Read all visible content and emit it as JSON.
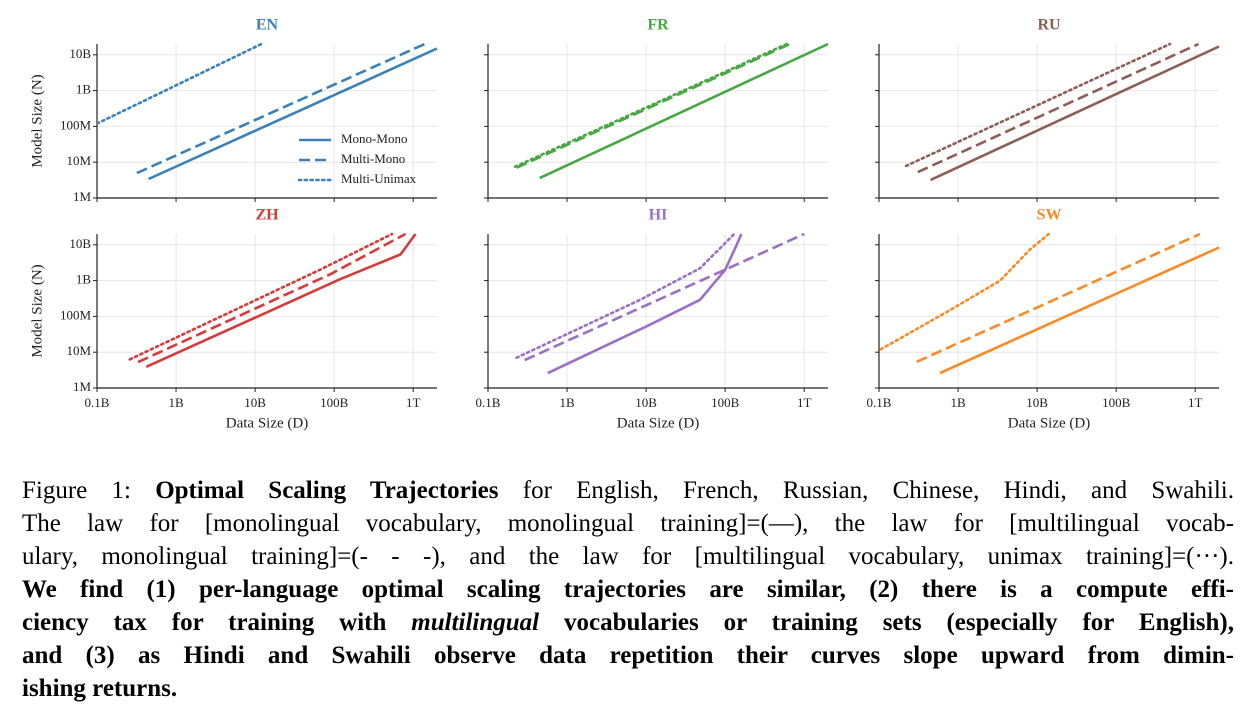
{
  "chart_data": [
    {
      "type": "line",
      "title": "EN",
      "ylabel": "Model Size (N)",
      "color": "#3a80ba",
      "log": true,
      "grid": true,
      "legend": "lower right",
      "xlim": [
        100000000,
        2000000000000
      ],
      "ylim": [
        1000000,
        20000000000
      ],
      "yticks": [
        {
          "value": 1000000,
          "label": "1M"
        },
        {
          "value": 10000000,
          "label": "10M"
        },
        {
          "value": 100000000,
          "label": "100M"
        },
        {
          "value": 1000000000,
          "label": "1B"
        },
        {
          "value": 10000000000,
          "label": "10B"
        }
      ],
      "series": [
        {
          "name": "Mono-Mono",
          "linestyle": "solid",
          "x": [
            450000000,
            2000000000000
          ],
          "values": [
            3400000,
            15000000000
          ]
        },
        {
          "name": "Multi-Mono",
          "linestyle": "dashed",
          "x": [
            320000000,
            1400000000000
          ],
          "values": [
            5000000,
            20000000000
          ]
        },
        {
          "name": "Multi-Unimax",
          "linestyle": "dotted",
          "x": [
            100000000,
            12000000000
          ],
          "values": [
            120000000,
            20000000000
          ]
        }
      ]
    },
    {
      "type": "line",
      "title": "FR",
      "color": "#47a843",
      "log": true,
      "grid": true,
      "xlim": [
        100000000,
        2000000000000
      ],
      "ylim": [
        1000000,
        20000000000
      ],
      "series": [
        {
          "linestyle": "solid",
          "x": [
            450000000,
            2000000000000
          ],
          "values": [
            3600000,
            20000000000
          ]
        },
        {
          "linestyle": "dashed",
          "x": [
            230000000,
            660000000000
          ],
          "values": [
            7000000,
            20000000000
          ]
        },
        {
          "linestyle": "dotted",
          "x": [
            220000000,
            600000000000
          ],
          "values": [
            7500000,
            20000000000
          ]
        }
      ]
    },
    {
      "type": "line",
      "title": "RU",
      "color": "#8c5e55",
      "log": true,
      "grid": true,
      "xlim": [
        100000000,
        2000000000000
      ],
      "ylim": [
        1000000,
        20000000000
      ],
      "series": [
        {
          "linestyle": "solid",
          "x": [
            450000000,
            2000000000000
          ],
          "values": [
            3200000,
            17000000000
          ]
        },
        {
          "linestyle": "dashed",
          "x": [
            310000000,
            1100000000000
          ],
          "values": [
            5300000,
            20000000000
          ]
        },
        {
          "linestyle": "dotted",
          "x": [
            220000000,
            480000000000
          ],
          "values": [
            7900000,
            20000000000
          ]
        }
      ]
    },
    {
      "type": "line",
      "title": "ZH",
      "ylabel": "Model Size (N)",
      "xlabel": "Data Size (D)",
      "color": "#d63a3a",
      "log": true,
      "grid": true,
      "xlim": [
        100000000,
        2000000000000
      ],
      "ylim": [
        1000000,
        20000000000
      ],
      "xticks": [
        {
          "value": 100000000,
          "label": "0.1B"
        },
        {
          "value": 1000000000,
          "label": "1B"
        },
        {
          "value": 10000000000,
          "label": "10B"
        },
        {
          "value": 100000000000,
          "label": "100B"
        },
        {
          "value": 1000000000000,
          "label": "1T"
        }
      ],
      "yticks": [
        {
          "value": 1000000,
          "label": "1M"
        },
        {
          "value": 10000000,
          "label": "10M"
        },
        {
          "value": 100000000,
          "label": "100M"
        },
        {
          "value": 1000000000,
          "label": "1B"
        },
        {
          "value": 10000000000,
          "label": "10B"
        }
      ],
      "series": [
        {
          "linestyle": "solid",
          "x": [
            420000000,
            120000000000,
            690000000000,
            1070000000000
          ],
          "values": [
            3900000,
            1100000000,
            5400000000,
            20000000000
          ]
        },
        {
          "linestyle": "dashed",
          "x": [
            330000000,
            89000000000,
            800000000000
          ],
          "values": [
            5300000,
            1500000000,
            20000000000
          ]
        },
        {
          "linestyle": "dotted",
          "x": [
            260000000,
            66000000000,
            540000000000
          ],
          "values": [
            6300000,
            2000000000,
            20000000000
          ]
        }
      ]
    },
    {
      "type": "line",
      "title": "HI",
      "xlabel": "Data Size (D)",
      "color": "#9a6fc4",
      "log": true,
      "grid": true,
      "xlim": [
        100000000,
        2000000000000
      ],
      "ylim": [
        1000000,
        20000000000
      ],
      "xticks": [
        {
          "value": 100000000,
          "label": "0.1B"
        },
        {
          "value": 1000000000,
          "label": "1B"
        },
        {
          "value": 10000000000,
          "label": "10B"
        },
        {
          "value": 100000000000,
          "label": "100B"
        },
        {
          "value": 1000000000000,
          "label": "1T"
        }
      ],
      "series": [
        {
          "linestyle": "solid",
          "x": [
            570000000,
            9800000000,
            48000000000,
            100000000000,
            140000000000,
            160000000000
          ],
          "values": [
            2600000,
            51000000,
            290000000,
            2000000000,
            10000000000,
            20000000000
          ]
        },
        {
          "linestyle": "dashed",
          "x": [
            290000000,
            1000000000000
          ],
          "values": [
            6000000,
            20000000000
          ]
        },
        {
          "linestyle": "dotted",
          "x": [
            230000000,
            8400000000,
            48000000000,
            130000000000
          ],
          "values": [
            7000000,
            290000000,
            2200000000,
            20000000000
          ]
        }
      ]
    },
    {
      "type": "line",
      "title": "SW",
      "xlabel": "Data Size (D)",
      "color": "#f98a26",
      "log": true,
      "grid": true,
      "xlim": [
        100000000,
        2000000000000
      ],
      "ylim": [
        1000000,
        20000000000
      ],
      "xticks": [
        {
          "value": 100000000,
          "label": "0.1B"
        },
        {
          "value": 1000000000,
          "label": "1B"
        },
        {
          "value": 10000000000,
          "label": "10B"
        },
        {
          "value": 100000000000,
          "label": "100B"
        },
        {
          "value": 1000000000000,
          "label": "1T"
        }
      ],
      "series": [
        {
          "linestyle": "solid",
          "x": [
            590000000,
            2000000000000
          ],
          "values": [
            2600000,
            8400000000
          ]
        },
        {
          "linestyle": "dashed",
          "x": [
            300000000,
            1150000000000
          ],
          "values": [
            5400000,
            20000000000
          ]
        },
        {
          "linestyle": "dotted",
          "x": [
            105000000,
            790000000,
            3400000000,
            8100000000,
            14000000000
          ],
          "values": [
            12000000,
            150000000,
            1000000000,
            7400000000,
            20000000000
          ]
        }
      ]
    }
  ],
  "caption": {
    "lines": [
      [
        {
          "text": "Figure 1: ",
          "style": "normal"
        },
        {
          "text": "Optimal Scaling Trajectories",
          "style": "bold"
        },
        {
          "text": " for English, French, Russian, Chinese, Hindi, and Swahili.",
          "style": "normal"
        }
      ],
      [
        {
          "text": "The law for [monolingual vocabulary, monolingual training]=(—), the law for [multilingual vocab-",
          "style": "normal"
        }
      ],
      [
        {
          "text": "ulary, monolingual training]=(- - -), and the law for [multilingual vocabulary, unimax training]=(···).",
          "style": "normal"
        }
      ],
      [
        {
          "text": "We find (1) per-language optimal scaling trajectories are similar, (2) there is a compute effi-",
          "style": "bold"
        }
      ],
      [
        {
          "text": "ciency tax for training with ",
          "style": "bold"
        },
        {
          "text": "multilingual",
          "style": "bold-italic"
        },
        {
          "text": " vocabularies or training sets (especially for English),",
          "style": "bold"
        }
      ],
      [
        {
          "text": "and (3) as Hindi and Swahili observe data repetition their curves slope upward from dimin-",
          "style": "bold"
        }
      ],
      [
        {
          "text": "ishing returns.",
          "style": "bold"
        }
      ]
    ]
  }
}
